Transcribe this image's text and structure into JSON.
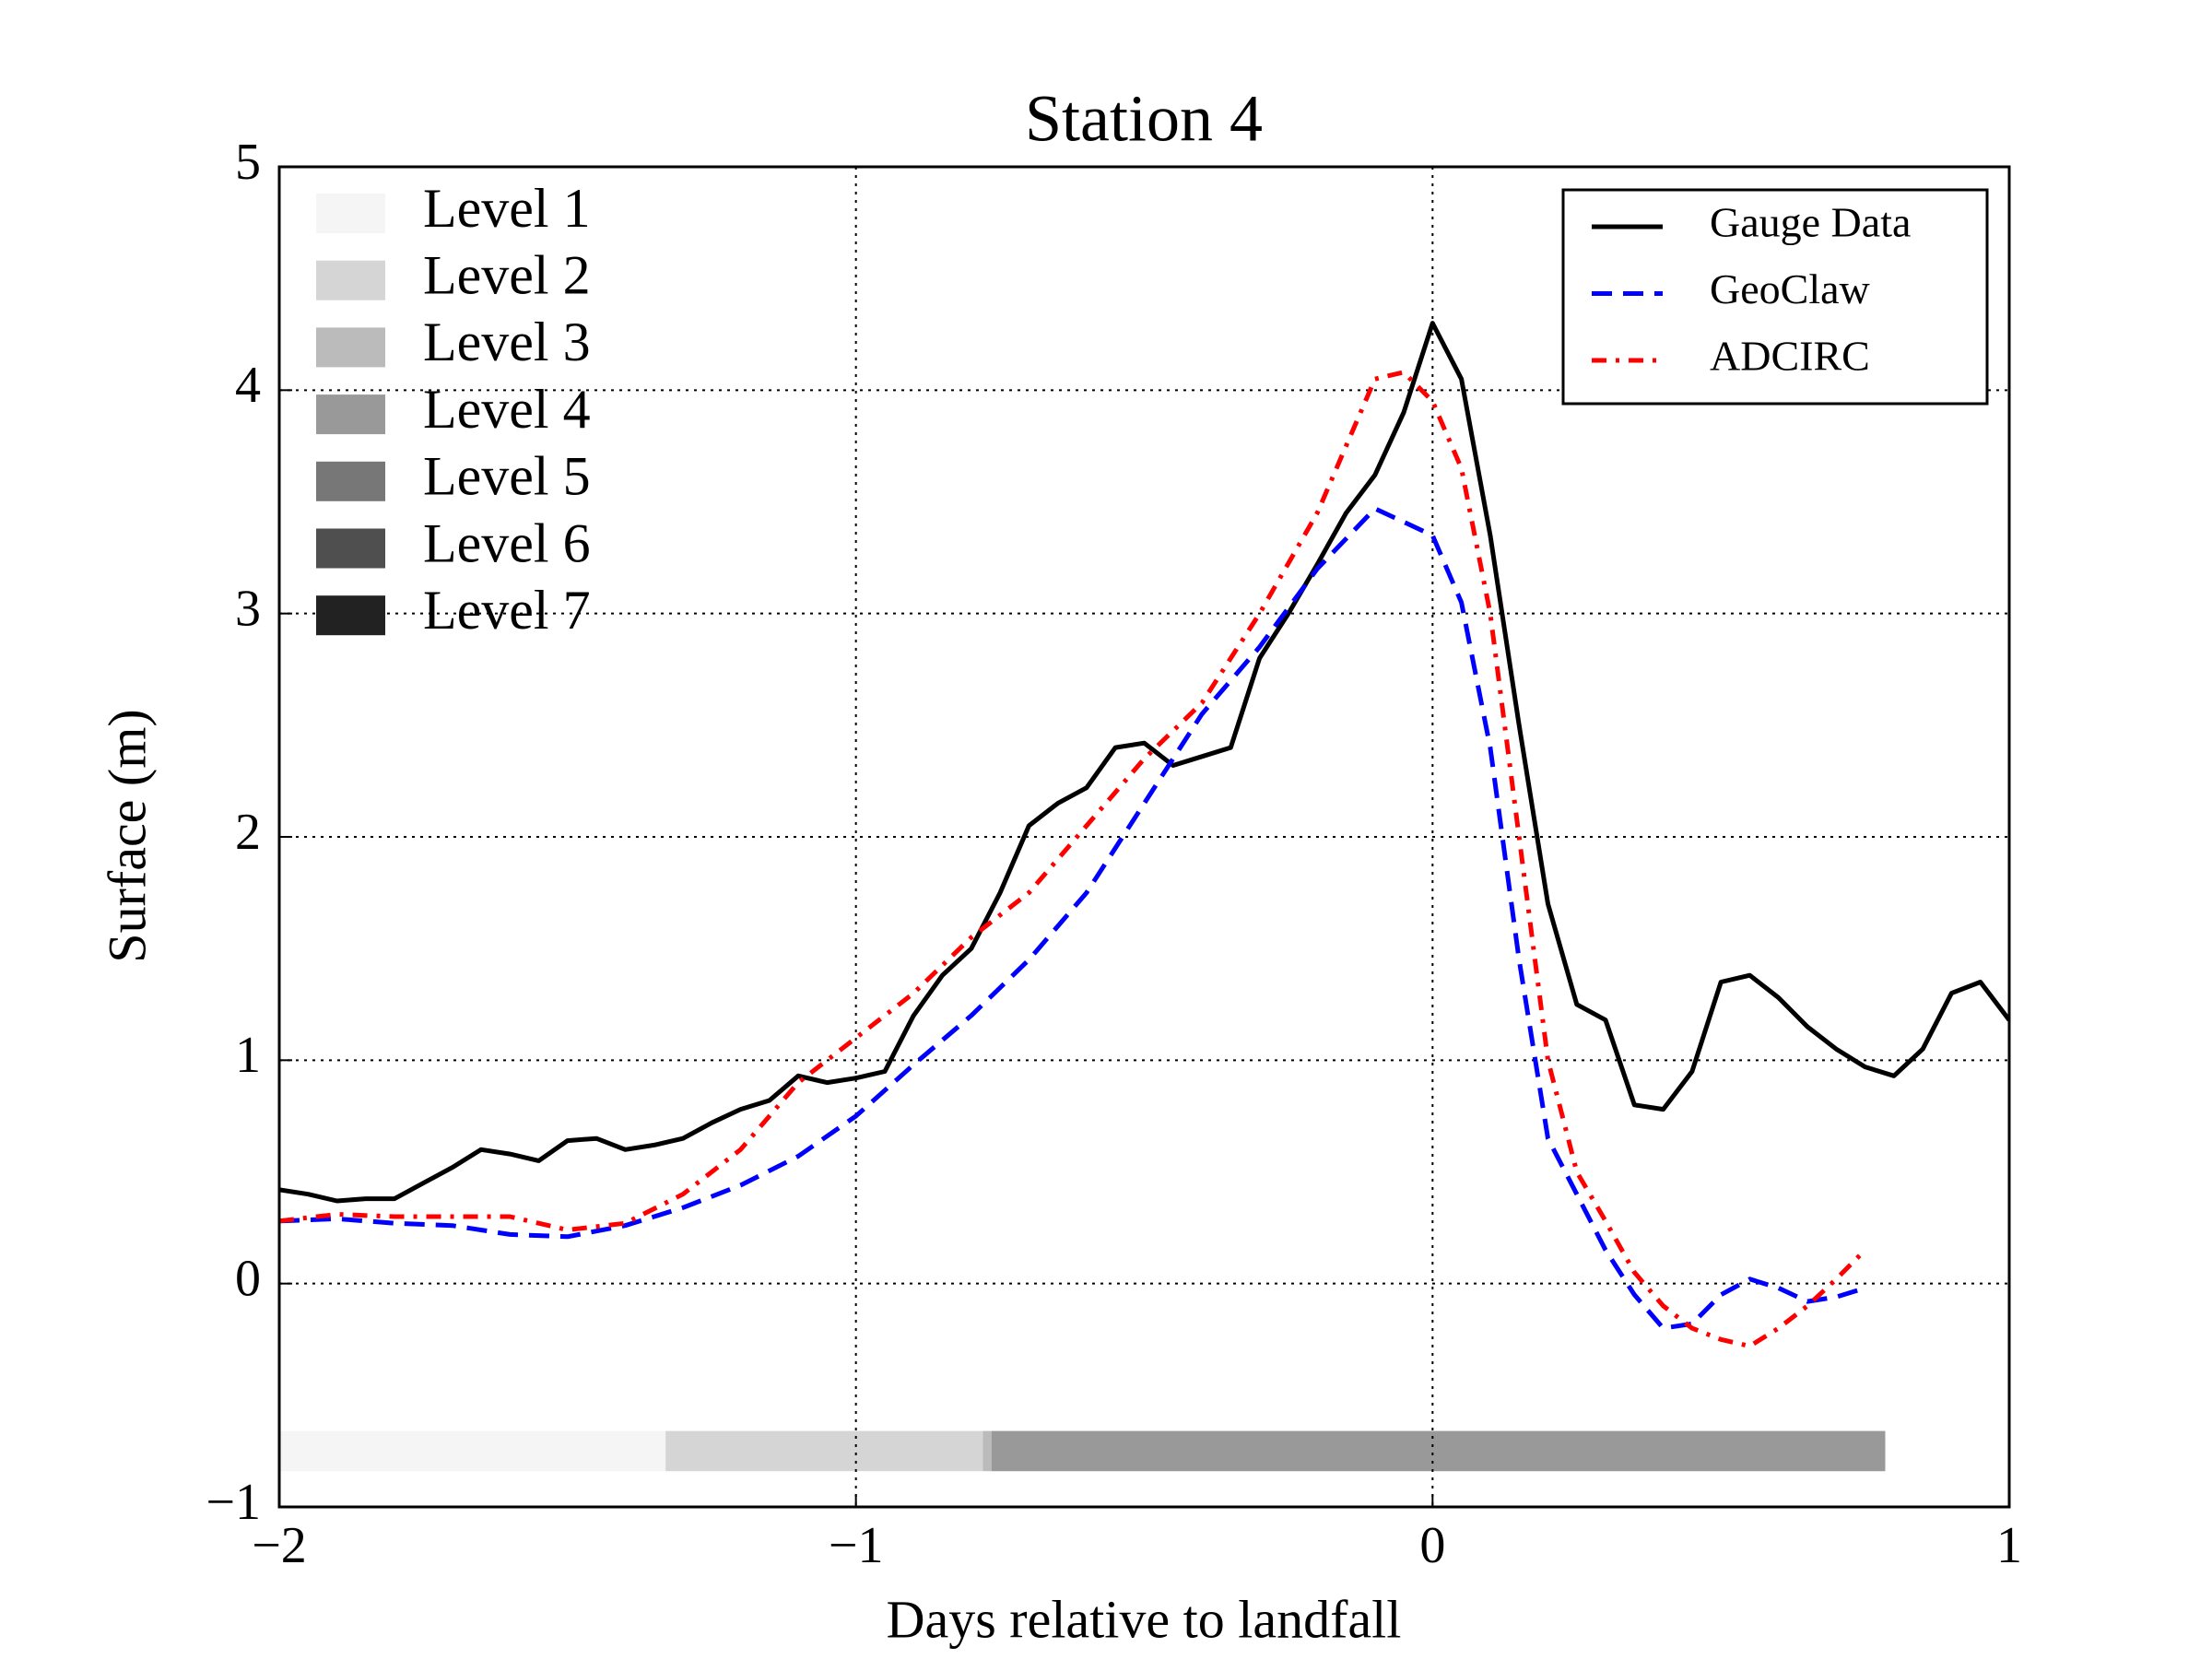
{
  "chart_data": {
    "type": "line",
    "title": "Station 4",
    "xlabel": "Days relative to landfall",
    "ylabel": "Surface (m)",
    "xlim": [
      -2,
      1
    ],
    "ylim": [
      -1,
      5
    ],
    "xticks": [
      {
        "value": -2,
        "label": "−2"
      },
      {
        "value": -1,
        "label": "−1"
      },
      0,
      1
    ],
    "yticks": [
      {
        "value": -1,
        "label": "−1"
      },
      0,
      1,
      2,
      3,
      4,
      5
    ],
    "grid": true,
    "legend": "upper right",
    "series": [
      {
        "name": "Gauge Data",
        "color": "#000000",
        "linestyle": "solid",
        "x": [
          -2.0,
          -1.95,
          -1.9,
          -1.85,
          -1.8,
          -1.75,
          -1.7,
          -1.65,
          -1.6,
          -1.55,
          -1.5,
          -1.45,
          -1.4,
          -1.35,
          -1.3,
          -1.25,
          -1.2,
          -1.15,
          -1.1,
          -1.05,
          -1.0,
          -0.95,
          -0.9,
          -0.85,
          -0.8,
          -0.75,
          -0.7,
          -0.65,
          -0.6,
          -0.55,
          -0.5,
          -0.45,
          -0.4,
          -0.35,
          -0.3,
          -0.25,
          -0.2,
          -0.15,
          -0.1,
          -0.05,
          0.0,
          0.05,
          0.1,
          0.15,
          0.2,
          0.25,
          0.3,
          0.35,
          0.4,
          0.45,
          0.5,
          0.55,
          0.6,
          0.65,
          0.7,
          0.75,
          0.8,
          0.85,
          0.9,
          0.95,
          1.0
        ],
        "values": [
          0.42,
          0.4,
          0.37,
          0.38,
          0.38,
          0.45,
          0.52,
          0.6,
          0.58,
          0.55,
          0.64,
          0.65,
          0.6,
          0.62,
          0.65,
          0.72,
          0.78,
          0.82,
          0.93,
          0.9,
          0.92,
          0.95,
          1.2,
          1.38,
          1.5,
          1.75,
          2.05,
          2.15,
          2.22,
          2.4,
          2.42,
          2.32,
          2.36,
          2.4,
          2.8,
          3.0,
          3.22,
          3.45,
          3.62,
          3.9,
          4.3,
          4.05,
          3.35,
          2.5,
          1.7,
          1.25,
          1.18,
          0.8,
          0.78,
          0.95,
          1.35,
          1.38,
          1.28,
          1.15,
          1.05,
          0.97,
          0.93,
          1.05,
          1.3,
          1.35,
          1.18
        ]
      },
      {
        "name": "GeoClaw",
        "color": "#0000ff",
        "linestyle": "dashed",
        "x": [
          -2.0,
          -1.9,
          -1.8,
          -1.7,
          -1.6,
          -1.5,
          -1.4,
          -1.3,
          -1.2,
          -1.1,
          -1.0,
          -0.9,
          -0.8,
          -0.7,
          -0.6,
          -0.5,
          -0.4,
          -0.3,
          -0.2,
          -0.1,
          0.0,
          0.05,
          0.1,
          0.15,
          0.2,
          0.25,
          0.3,
          0.35,
          0.4,
          0.45,
          0.5,
          0.55,
          0.6,
          0.65,
          0.7,
          0.75
        ],
        "values": [
          0.28,
          0.29,
          0.27,
          0.26,
          0.22,
          0.21,
          0.26,
          0.34,
          0.44,
          0.57,
          0.75,
          0.98,
          1.2,
          1.45,
          1.75,
          2.15,
          2.55,
          2.85,
          3.2,
          3.47,
          3.35,
          3.05,
          2.4,
          1.45,
          0.65,
          0.4,
          0.15,
          -0.05,
          -0.2,
          -0.18,
          -0.05,
          0.02,
          -0.02,
          -0.08,
          -0.06,
          -0.02
        ]
      },
      {
        "name": "ADCIRC",
        "color": "#ff0000",
        "linestyle": "dashdot",
        "x": [
          -2.0,
          -1.9,
          -1.8,
          -1.7,
          -1.6,
          -1.5,
          -1.4,
          -1.3,
          -1.2,
          -1.1,
          -1.0,
          -0.9,
          -0.8,
          -0.7,
          -0.6,
          -0.5,
          -0.4,
          -0.3,
          -0.2,
          -0.1,
          -0.05,
          0.0,
          0.05,
          0.1,
          0.15,
          0.2,
          0.25,
          0.3,
          0.35,
          0.4,
          0.45,
          0.5,
          0.55,
          0.6,
          0.65,
          0.7,
          0.75
        ],
        "values": [
          0.28,
          0.31,
          0.3,
          0.3,
          0.3,
          0.24,
          0.27,
          0.4,
          0.6,
          0.9,
          1.1,
          1.3,
          1.55,
          1.75,
          2.05,
          2.35,
          2.6,
          3.0,
          3.45,
          4.05,
          4.08,
          3.95,
          3.65,
          3.0,
          2.0,
          1.0,
          0.5,
          0.28,
          0.05,
          -0.1,
          -0.2,
          -0.25,
          -0.28,
          -0.2,
          -0.1,
          0.02,
          0.15
        ]
      }
    ],
    "levels": [
      {
        "name": "Level 1",
        "color": "#f5f5f5",
        "spans": [
          [
            -2,
            -1.33
          ]
        ]
      },
      {
        "name": "Level 2",
        "color": "#d5d5d5",
        "spans": [
          [
            -1.33,
            -0.78
          ]
        ]
      },
      {
        "name": "Level 3",
        "color": "#bbbbbb",
        "spans": [
          [
            -0.78,
            -0.765
          ]
        ]
      },
      {
        "name": "Level 4",
        "color": "#999999",
        "spans": [
          [
            -0.765,
            0.785
          ]
        ]
      },
      {
        "name": "Level 5",
        "color": "#777777",
        "spans": []
      },
      {
        "name": "Level 6",
        "color": "#4f4f4f",
        "spans": []
      },
      {
        "name": "Level 7",
        "color": "#222222",
        "spans": []
      }
    ]
  }
}
